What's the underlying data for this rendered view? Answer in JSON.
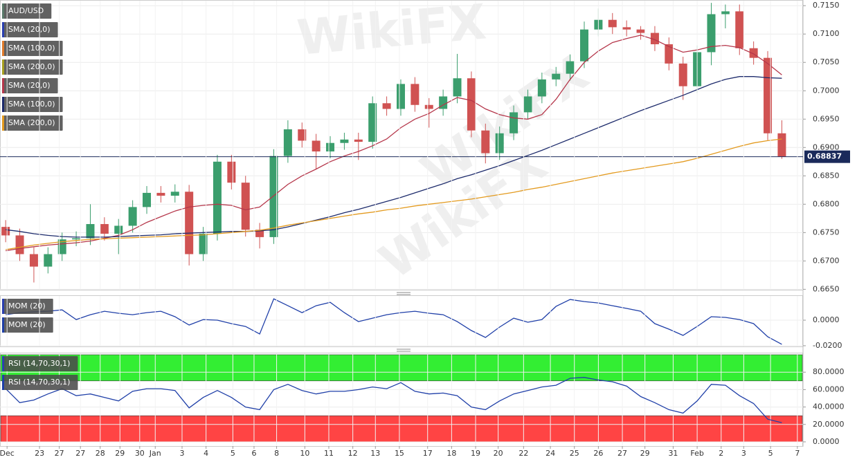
{
  "watermark": "WikiFX",
  "chart_data": [
    {
      "type": "candlestick",
      "legend": [
        {
          "label": "AUD/USD",
          "color": "#5a7a6a"
        },
        {
          "label": "SMA (20,0)",
          "color": "#2a3fb0"
        },
        {
          "label": "SMA (100,0)",
          "color": "#e07a2a"
        },
        {
          "label": "SMA (200,0)",
          "color": "#a8a020"
        }
      ],
      "up_color": "#3b9e6d",
      "down_color": "#d05252",
      "open": [
        0.676,
        0.6745,
        0.6712,
        0.669,
        0.6712,
        0.6738,
        0.674,
        0.6765,
        0.6748,
        0.6762,
        0.6795,
        0.682,
        0.6815,
        0.6822,
        0.6712,
        0.6748,
        0.6875,
        0.6838,
        0.6755,
        0.6742,
        0.6885,
        0.6932,
        0.6912,
        0.6893,
        0.6908,
        0.6914,
        0.691,
        0.6978,
        0.6968,
        0.7012,
        0.6975,
        0.6968,
        0.699,
        0.7022,
        0.693,
        0.689,
        0.6925,
        0.6962,
        0.699,
        0.702,
        0.703,
        0.7052,
        0.7108,
        0.7125,
        0.7112,
        0.7108,
        0.7102,
        0.7082,
        0.7048,
        0.7008,
        0.7068,
        0.7135,
        0.714,
        0.7075,
        0.7058,
        0.6925
      ],
      "high": [
        0.6772,
        0.6757,
        0.6724,
        0.6724,
        0.675,
        0.6752,
        0.68,
        0.6777,
        0.6774,
        0.6807,
        0.6832,
        0.6832,
        0.6835,
        0.6834,
        0.676,
        0.6887,
        0.6887,
        0.685,
        0.6767,
        0.6897,
        0.6948,
        0.6944,
        0.6924,
        0.692,
        0.6926,
        0.6926,
        0.699,
        0.699,
        0.702,
        0.7024,
        0.6987,
        0.7002,
        0.7065,
        0.7034,
        0.6942,
        0.6937,
        0.6974,
        0.7002,
        0.7032,
        0.7042,
        0.7064,
        0.7122,
        0.7145,
        0.7137,
        0.7124,
        0.7114,
        0.7114,
        0.7094,
        0.706,
        0.708,
        0.7155,
        0.7152,
        0.7152,
        0.7087,
        0.707,
        0.6948
      ],
      "low": [
        0.6733,
        0.67,
        0.6662,
        0.6678,
        0.67,
        0.6726,
        0.6728,
        0.6736,
        0.6712,
        0.675,
        0.6783,
        0.6803,
        0.6803,
        0.6692,
        0.67,
        0.6736,
        0.6826,
        0.6743,
        0.6722,
        0.673,
        0.6873,
        0.69,
        0.6862,
        0.6881,
        0.6896,
        0.6878,
        0.6898,
        0.6956,
        0.6956,
        0.6963,
        0.6935,
        0.6956,
        0.6978,
        0.6918,
        0.6872,
        0.6878,
        0.6913,
        0.695,
        0.6978,
        0.7008,
        0.7018,
        0.704,
        0.7096,
        0.71,
        0.7096,
        0.709,
        0.707,
        0.7036,
        0.6984,
        0.6996,
        0.7045,
        0.711,
        0.7063,
        0.7046,
        0.6913,
        0.688
      ],
      "close": [
        0.6745,
        0.6712,
        0.669,
        0.6712,
        0.6738,
        0.674,
        0.6765,
        0.6748,
        0.6762,
        0.6795,
        0.682,
        0.6815,
        0.6822,
        0.6712,
        0.6748,
        0.6875,
        0.6838,
        0.6755,
        0.6742,
        0.6885,
        0.6932,
        0.6912,
        0.6893,
        0.6908,
        0.6914,
        0.691,
        0.6978,
        0.6968,
        0.7012,
        0.6975,
        0.6968,
        0.699,
        0.7022,
        0.693,
        0.689,
        0.6925,
        0.6962,
        0.699,
        0.702,
        0.703,
        0.7052,
        0.7108,
        0.7125,
        0.7112,
        0.7108,
        0.7102,
        0.7082,
        0.7048,
        0.7008,
        0.7068,
        0.7135,
        0.714,
        0.7075,
        0.7058,
        0.6925,
        0.6884
      ],
      "series": [
        {
          "name": "SMA (20,0)",
          "color": "#b5364a",
          "values": [
            0.6718,
            0.6722,
            0.6725,
            0.6728,
            0.673,
            0.6732,
            0.6735,
            0.674,
            0.6745,
            0.6755,
            0.6768,
            0.6778,
            0.6788,
            0.6795,
            0.6798,
            0.68,
            0.6798,
            0.679,
            0.6795,
            0.6815,
            0.6835,
            0.685,
            0.6862,
            0.6875,
            0.6885,
            0.6893,
            0.6903,
            0.6915,
            0.6935,
            0.695,
            0.696,
            0.6975,
            0.6988,
            0.6983,
            0.6968,
            0.6958,
            0.6952,
            0.695,
            0.6958,
            0.6985,
            0.702,
            0.705,
            0.707,
            0.7085,
            0.7092,
            0.7098,
            0.709,
            0.7078,
            0.7068,
            0.7072,
            0.7078,
            0.708,
            0.7076,
            0.7065,
            0.7048,
            0.7028
          ]
        },
        {
          "name": "SMA (100,0)",
          "color": "#1c2a6b",
          "values": [
            0.6755,
            0.6752,
            0.6748,
            0.6745,
            0.6743,
            0.6742,
            0.6742,
            0.6742,
            0.6743,
            0.6744,
            0.6745,
            0.6746,
            0.6748,
            0.6749,
            0.675,
            0.6751,
            0.6752,
            0.6752,
            0.6753,
            0.6755,
            0.676,
            0.6766,
            0.6772,
            0.6778,
            0.6785,
            0.6791,
            0.6798,
            0.6805,
            0.6812,
            0.682,
            0.6828,
            0.6836,
            0.6845,
            0.6852,
            0.686,
            0.6868,
            0.6877,
            0.6886,
            0.6895,
            0.6905,
            0.6915,
            0.6925,
            0.6935,
            0.6945,
            0.6955,
            0.6965,
            0.6974,
            0.6983,
            0.6992,
            0.7002,
            0.7012,
            0.702,
            0.7025,
            0.7025,
            0.7023,
            0.7022
          ]
        },
        {
          "name": "SMA (200,0)",
          "color": "#e39a1e",
          "values": [
            0.672,
            0.6724,
            0.6728,
            0.6731,
            0.6734,
            0.6736,
            0.6738,
            0.6739,
            0.674,
            0.6741,
            0.6742,
            0.6743,
            0.6744,
            0.6745,
            0.6746,
            0.6748,
            0.675,
            0.6752,
            0.6754,
            0.6758,
            0.6763,
            0.6767,
            0.6771,
            0.6775,
            0.6779,
            0.6783,
            0.6786,
            0.679,
            0.6793,
            0.6797,
            0.68,
            0.6803,
            0.6806,
            0.6809,
            0.6813,
            0.6817,
            0.6821,
            0.6826,
            0.683,
            0.6835,
            0.684,
            0.6845,
            0.685,
            0.6855,
            0.6859,
            0.6863,
            0.6867,
            0.6871,
            0.6875,
            0.6881,
            0.6888,
            0.6895,
            0.6902,
            0.6908,
            0.6912,
            0.6915
          ]
        }
      ],
      "last_price": 0.68837,
      "last_price_color": "#1a2a5a",
      "xlim": [
        -0.4,
        56.5
      ],
      "ylim": [
        0.6648,
        0.716
      ],
      "yticks": [
        {
          "value": 0.715,
          "label": "0.7150"
        },
        {
          "value": 0.71,
          "label": "0.7100"
        },
        {
          "value": 0.705,
          "label": "0.7050"
        },
        {
          "value": 0.7,
          "label": "0.7000"
        },
        {
          "value": 0.695,
          "label": "0.6950"
        },
        {
          "value": 0.69,
          "label": "0.6900"
        },
        {
          "value": 0.685,
          "label": "0.6850"
        },
        {
          "value": 0.68,
          "label": "0.6800"
        },
        {
          "value": 0.675,
          "label": "0.6750"
        },
        {
          "value": 0.67,
          "label": "0.6700"
        },
        {
          "value": 0.665,
          "label": "0.6650"
        }
      ],
      "grid": true
    },
    {
      "type": "line",
      "legend": [
        {
          "label": "MOM (20)",
          "color": "#2a3fb0"
        }
      ],
      "series": [
        {
          "name": "MOM (20)",
          "color": "#1f3fa8",
          "values": [
            0.0043,
            0.0059,
            0.0065,
            0.007,
            0.0081,
            0.0005,
            0.0043,
            0.007,
            0.0054,
            0.0043,
            0.0059,
            0.007,
            0.0027,
            -0.0038,
            0.0005,
            0,
            -0.0027,
            -0.0049,
            -0.0108,
            0.0167,
            0.0113,
            0.0059,
            0.0113,
            0.014,
            0.0059,
            -0.0011,
            0.0016,
            0.0043,
            0.0059,
            0.007,
            0.0054,
            0.0043,
            -0.0011,
            -0.0081,
            -0.0135,
            -0.0054,
            0.0016,
            -0.0016,
            0.0005,
            0.0108,
            0.0162,
            0.0146,
            0.0135,
            0.0113,
            0.0092,
            0.007,
            -0.0027,
            -0.007,
            -0.0119,
            -0.0049,
            0.0027,
            0.0022,
            0.0005,
            -0.0027,
            -0.013,
            -0.0189
          ]
        }
      ],
      "xlim": [
        -0.4,
        56.5
      ],
      "ylim": [
        -0.0211,
        0.0195
      ],
      "yticks": [
        {
          "value": 0,
          "label": "0.0000"
        },
        {
          "value": -0.02,
          "label": "-0.0200"
        }
      ],
      "grid": true
    },
    {
      "type": "line",
      "legend": [
        {
          "label": "RSI (14,70,30,1)",
          "color": "#2a3fb0"
        }
      ],
      "bands": [
        {
          "from": 70,
          "to": 100,
          "color": "#33ee33"
        },
        {
          "from": 0,
          "to": 30,
          "color": "#ff4444"
        }
      ],
      "series": [
        {
          "name": "RSI (14,70,30,1)",
          "color": "#1f3fa8",
          "values": [
            61,
            45,
            48,
            55,
            61,
            53,
            55,
            51,
            47,
            58,
            61,
            61,
            59,
            39,
            51,
            59,
            51,
            40,
            37,
            60,
            66,
            59,
            55,
            58,
            58,
            60,
            63,
            61,
            68,
            58,
            55,
            56,
            53,
            40,
            37,
            47,
            55,
            59,
            63,
            65,
            73,
            74,
            71,
            69,
            64,
            52,
            45,
            37,
            33,
            47,
            66,
            65,
            53,
            44,
            26,
            22
          ]
        }
      ],
      "xlim": [
        -0.4,
        56.5
      ],
      "ylim": [
        -4.8,
        102.4
      ],
      "yticks": [
        {
          "value": 80,
          "label": "80.0000"
        },
        {
          "value": 60,
          "label": "60.0000"
        },
        {
          "value": 40,
          "label": "40.0000"
        },
        {
          "value": 20,
          "label": "20.0000"
        },
        {
          "value": 0,
          "label": "0.0000"
        }
      ],
      "xticks": [
        {
          "value": 0.1,
          "label": "Dec"
        },
        {
          "value": 2.4,
          "label": "23"
        },
        {
          "value": 3.8,
          "label": "27"
        },
        {
          "value": 5.3,
          "label": "27"
        },
        {
          "value": 6.7,
          "label": "28"
        },
        {
          "value": 8.1,
          "label": "29"
        },
        {
          "value": 9.5,
          "label": "30"
        },
        {
          "value": 10.6,
          "label": "Jan"
        },
        {
          "value": 12.5,
          "label": "3"
        },
        {
          "value": 14.2,
          "label": "4"
        },
        {
          "value": 16.1,
          "label": "5"
        },
        {
          "value": 17.6,
          "label": "6"
        },
        {
          "value": 19.2,
          "label": "8"
        },
        {
          "value": 21.2,
          "label": "10"
        },
        {
          "value": 22.9,
          "label": "11"
        },
        {
          "value": 24.6,
          "label": "12"
        },
        {
          "value": 26.2,
          "label": "13"
        },
        {
          "value": 27.9,
          "label": "15"
        },
        {
          "value": 29.9,
          "label": "17"
        },
        {
          "value": 31.6,
          "label": "18"
        },
        {
          "value": 33.3,
          "label": "19"
        },
        {
          "value": 34.9,
          "label": "20"
        },
        {
          "value": 36.7,
          "label": "22"
        },
        {
          "value": 38.6,
          "label": "24"
        },
        {
          "value": 40.3,
          "label": "25"
        },
        {
          "value": 42,
          "label": "26"
        },
        {
          "value": 43.7,
          "label": "27"
        },
        {
          "value": 45.3,
          "label": "29"
        },
        {
          "value": 47.3,
          "label": "31"
        },
        {
          "value": 49,
          "label": "Feb"
        },
        {
          "value": 50.7,
          "label": "2"
        },
        {
          "value": 52.3,
          "label": "3"
        },
        {
          "value": 54.2,
          "label": "5"
        },
        {
          "value": 56.1,
          "label": "7"
        }
      ],
      "grid": true
    }
  ]
}
